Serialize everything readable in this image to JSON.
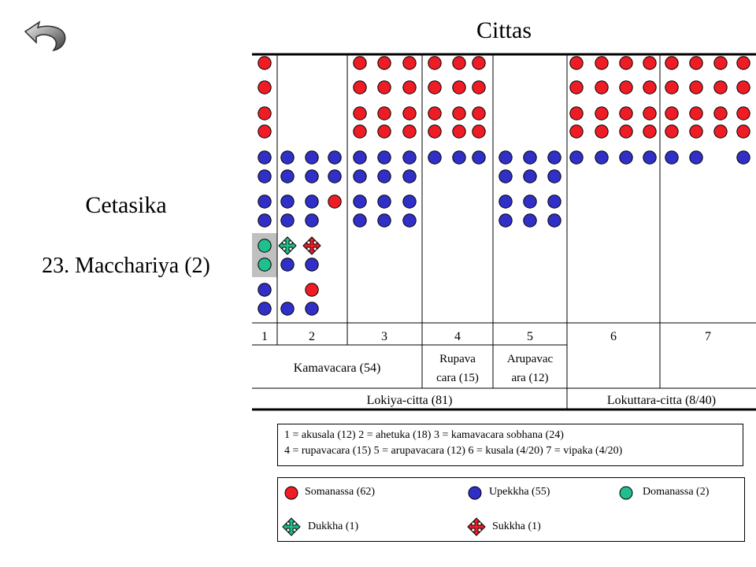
{
  "title": "Cittas",
  "subtitle": "Cetasika",
  "cetasika_name": "23. Macchariya (2)",
  "colors": {
    "somanassa": "#ee1c24",
    "upekkha": "#3030c8",
    "domanassa": "#1fbf8f",
    "highlight": "#c0c0c0"
  },
  "columns": [
    "1",
    "2",
    "3",
    "4",
    "5",
    "6",
    "7"
  ],
  "groups_row": [
    "Kamavacara (54)",
    "Rupava cara (15)",
    "Arupavac ara (12)"
  ],
  "groups_row_lines": [
    [
      "Kamavacara (54)"
    ],
    [
      "Rupava",
      "cara (15)"
    ],
    [
      "Arupavac",
      "ara (12)"
    ]
  ],
  "bottom_row": [
    "Lokiya-citta (81)",
    "Lokuttara-citta (8/40)"
  ],
  "key_lines": [
    "1 = akusala (12) 2 = ahetuka (18) 3 = kamavacara sobhana (24)",
    "4 = rupavacara (15) 5 = arupavacara (12) 6 = kusala (4/20) 7 = vipaka (4/20)"
  ],
  "legend": {
    "somanassa": "Somanassa (62)",
    "upekkha": "Upekkha (55)",
    "domanassa": "Domanassa (2)",
    "dukkha": "Dukkha (1)",
    "sukkha": "Sukkha (1)"
  },
  "icons": {
    "back": "back-arrow-icon",
    "dukkha": "cross-arrows-icon",
    "sukkha": "cross-arrows-icon"
  }
}
